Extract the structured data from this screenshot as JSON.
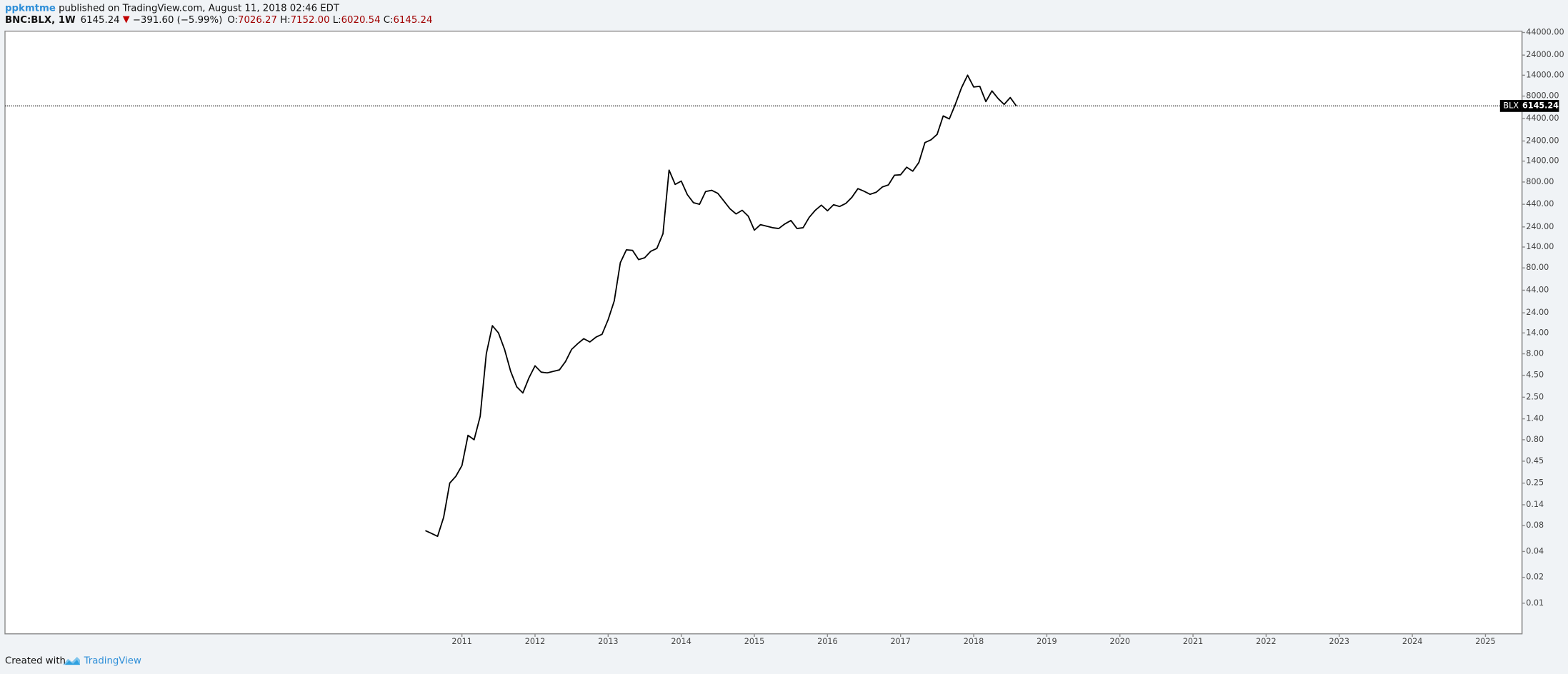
{
  "header": {
    "author": "ppkmtme",
    "published": "published on TradingView.com, August 11, 2018 02:46 EDT"
  },
  "legend": {
    "symbol": "BNC:BLX, 1W",
    "last": "6145.24",
    "change": "−391.60 (−5.99%)",
    "open_label": "O:",
    "open": "7026.27",
    "high_label": "H:",
    "high": "7152.00",
    "low_label": "L:",
    "low": "6020.54",
    "close_label": "C:",
    "close": "6145.24"
  },
  "footer": {
    "created": "Created with",
    "brand": "TradingView"
  },
  "chart_data": {
    "type": "line",
    "log_scale": true,
    "color": "#000000",
    "price_line": {
      "symbol": "BLX",
      "value": 6145.24,
      "label": "6145.24"
    },
    "xlim": [
      "2004-10",
      "2025-07"
    ],
    "xticks": [
      {
        "value": "2011-01",
        "label": "2011"
      },
      {
        "value": "2012-01",
        "label": "2012"
      },
      {
        "value": "2013-01",
        "label": "2013"
      },
      {
        "value": "2014-01",
        "label": "2014"
      },
      {
        "value": "2015-01",
        "label": "2015"
      },
      {
        "value": "2016-01",
        "label": "2016"
      },
      {
        "value": "2017-01",
        "label": "2017"
      },
      {
        "value": "2018-01",
        "label": "2018"
      },
      {
        "value": "2019-01",
        "label": "2019"
      },
      {
        "value": "2020-01",
        "label": "2020"
      },
      {
        "value": "2021-01",
        "label": "2021"
      },
      {
        "value": "2022-01",
        "label": "2022"
      },
      {
        "value": "2023-01",
        "label": "2023"
      },
      {
        "value": "2024-01",
        "label": "2024"
      },
      {
        "value": "2025-01",
        "label": "2025"
      }
    ],
    "ylim": [
      0.0044,
      45600
    ],
    "yticks": [
      {
        "value": 44000,
        "label": "44000.00"
      },
      {
        "value": 24000,
        "label": "24000.00"
      },
      {
        "value": 14000,
        "label": "14000.00"
      },
      {
        "value": 8000,
        "label": "8000.00"
      },
      {
        "value": 4400,
        "label": "4400.00"
      },
      {
        "value": 2400,
        "label": "2400.00"
      },
      {
        "value": 1400,
        "label": "1400.00"
      },
      {
        "value": 800,
        "label": "800.00"
      },
      {
        "value": 440,
        "label": "440.00"
      },
      {
        "value": 240,
        "label": "240.00"
      },
      {
        "value": 140,
        "label": "140.00"
      },
      {
        "value": 80,
        "label": "80.00"
      },
      {
        "value": 44,
        "label": "44.00"
      },
      {
        "value": 24,
        "label": "24.00"
      },
      {
        "value": 14,
        "label": "14.00"
      },
      {
        "value": 8,
        "label": "8.00"
      },
      {
        "value": 4.5,
        "label": "4.50"
      },
      {
        "value": 2.5,
        "label": "2.50"
      },
      {
        "value": 1.4,
        "label": "1.40"
      },
      {
        "value": 0.8,
        "label": "0.80"
      },
      {
        "value": 0.45,
        "label": "0.45"
      },
      {
        "value": 0.25,
        "label": "0.25"
      },
      {
        "value": 0.14,
        "label": "0.14"
      },
      {
        "value": 0.08,
        "label": "0.08"
      },
      {
        "value": 0.04,
        "label": "0.04"
      },
      {
        "value": 0.02,
        "label": "0.02"
      },
      {
        "value": 0.01,
        "label": "0.01"
      }
    ],
    "x": [
      "2010-07",
      "2010-08",
      "2010-09",
      "2010-10",
      "2010-11",
      "2010-12",
      "2011-01",
      "2011-02",
      "2011-03",
      "2011-04",
      "2011-05",
      "2011-06",
      "2011-07",
      "2011-08",
      "2011-09",
      "2011-10",
      "2011-11",
      "2011-12",
      "2012-01",
      "2012-02",
      "2012-03",
      "2012-04",
      "2012-05",
      "2012-06",
      "2012-07",
      "2012-08",
      "2012-09",
      "2012-10",
      "2012-11",
      "2012-12",
      "2013-01",
      "2013-02",
      "2013-03",
      "2013-04",
      "2013-05",
      "2013-06",
      "2013-07",
      "2013-08",
      "2013-09",
      "2013-10",
      "2013-11",
      "2013-12",
      "2014-01",
      "2014-02",
      "2014-03",
      "2014-04",
      "2014-05",
      "2014-06",
      "2014-07",
      "2014-08",
      "2014-09",
      "2014-10",
      "2014-11",
      "2014-12",
      "2015-01",
      "2015-02",
      "2015-03",
      "2015-04",
      "2015-05",
      "2015-06",
      "2015-07",
      "2015-08",
      "2015-09",
      "2015-10",
      "2015-11",
      "2015-12",
      "2016-01",
      "2016-02",
      "2016-03",
      "2016-04",
      "2016-05",
      "2016-06",
      "2016-07",
      "2016-08",
      "2016-09",
      "2016-10",
      "2016-11",
      "2016-12",
      "2017-01",
      "2017-02",
      "2017-03",
      "2017-04",
      "2017-05",
      "2017-06",
      "2017-07",
      "2017-08",
      "2017-09",
      "2017-10",
      "2017-11",
      "2017-12",
      "2018-01",
      "2018-02",
      "2018-03",
      "2018-04",
      "2018-05",
      "2018-06",
      "2018-07",
      "2018-08"
    ],
    "values": [
      0.07,
      0.065,
      0.06,
      0.1,
      0.25,
      0.3,
      0.4,
      0.9,
      0.8,
      1.5,
      8,
      17,
      14,
      9,
      5,
      3.3,
      2.8,
      4.2,
      5.8,
      4.9,
      4.8,
      5.0,
      5.2,
      6.5,
      9,
      10.5,
      12,
      11,
      12.5,
      13.5,
      20,
      33,
      92,
      130,
      128,
      100,
      105,
      125,
      135,
      200,
      1100,
      750,
      820,
      570,
      460,
      440,
      620,
      640,
      590,
      480,
      390,
      340,
      375,
      320,
      220,
      255,
      245,
      235,
      230,
      260,
      285,
      230,
      235,
      310,
      375,
      430,
      370,
      435,
      415,
      450,
      530,
      670,
      625,
      575,
      608,
      700,
      740,
      960,
      970,
      1190,
      1070,
      1350,
      2300,
      2480,
      2870,
      4700,
      4340,
      6450,
      10000,
      14000,
      10200,
      10400,
      6900,
      9200,
      7500,
      6400,
      7700,
      6145.24
    ]
  }
}
